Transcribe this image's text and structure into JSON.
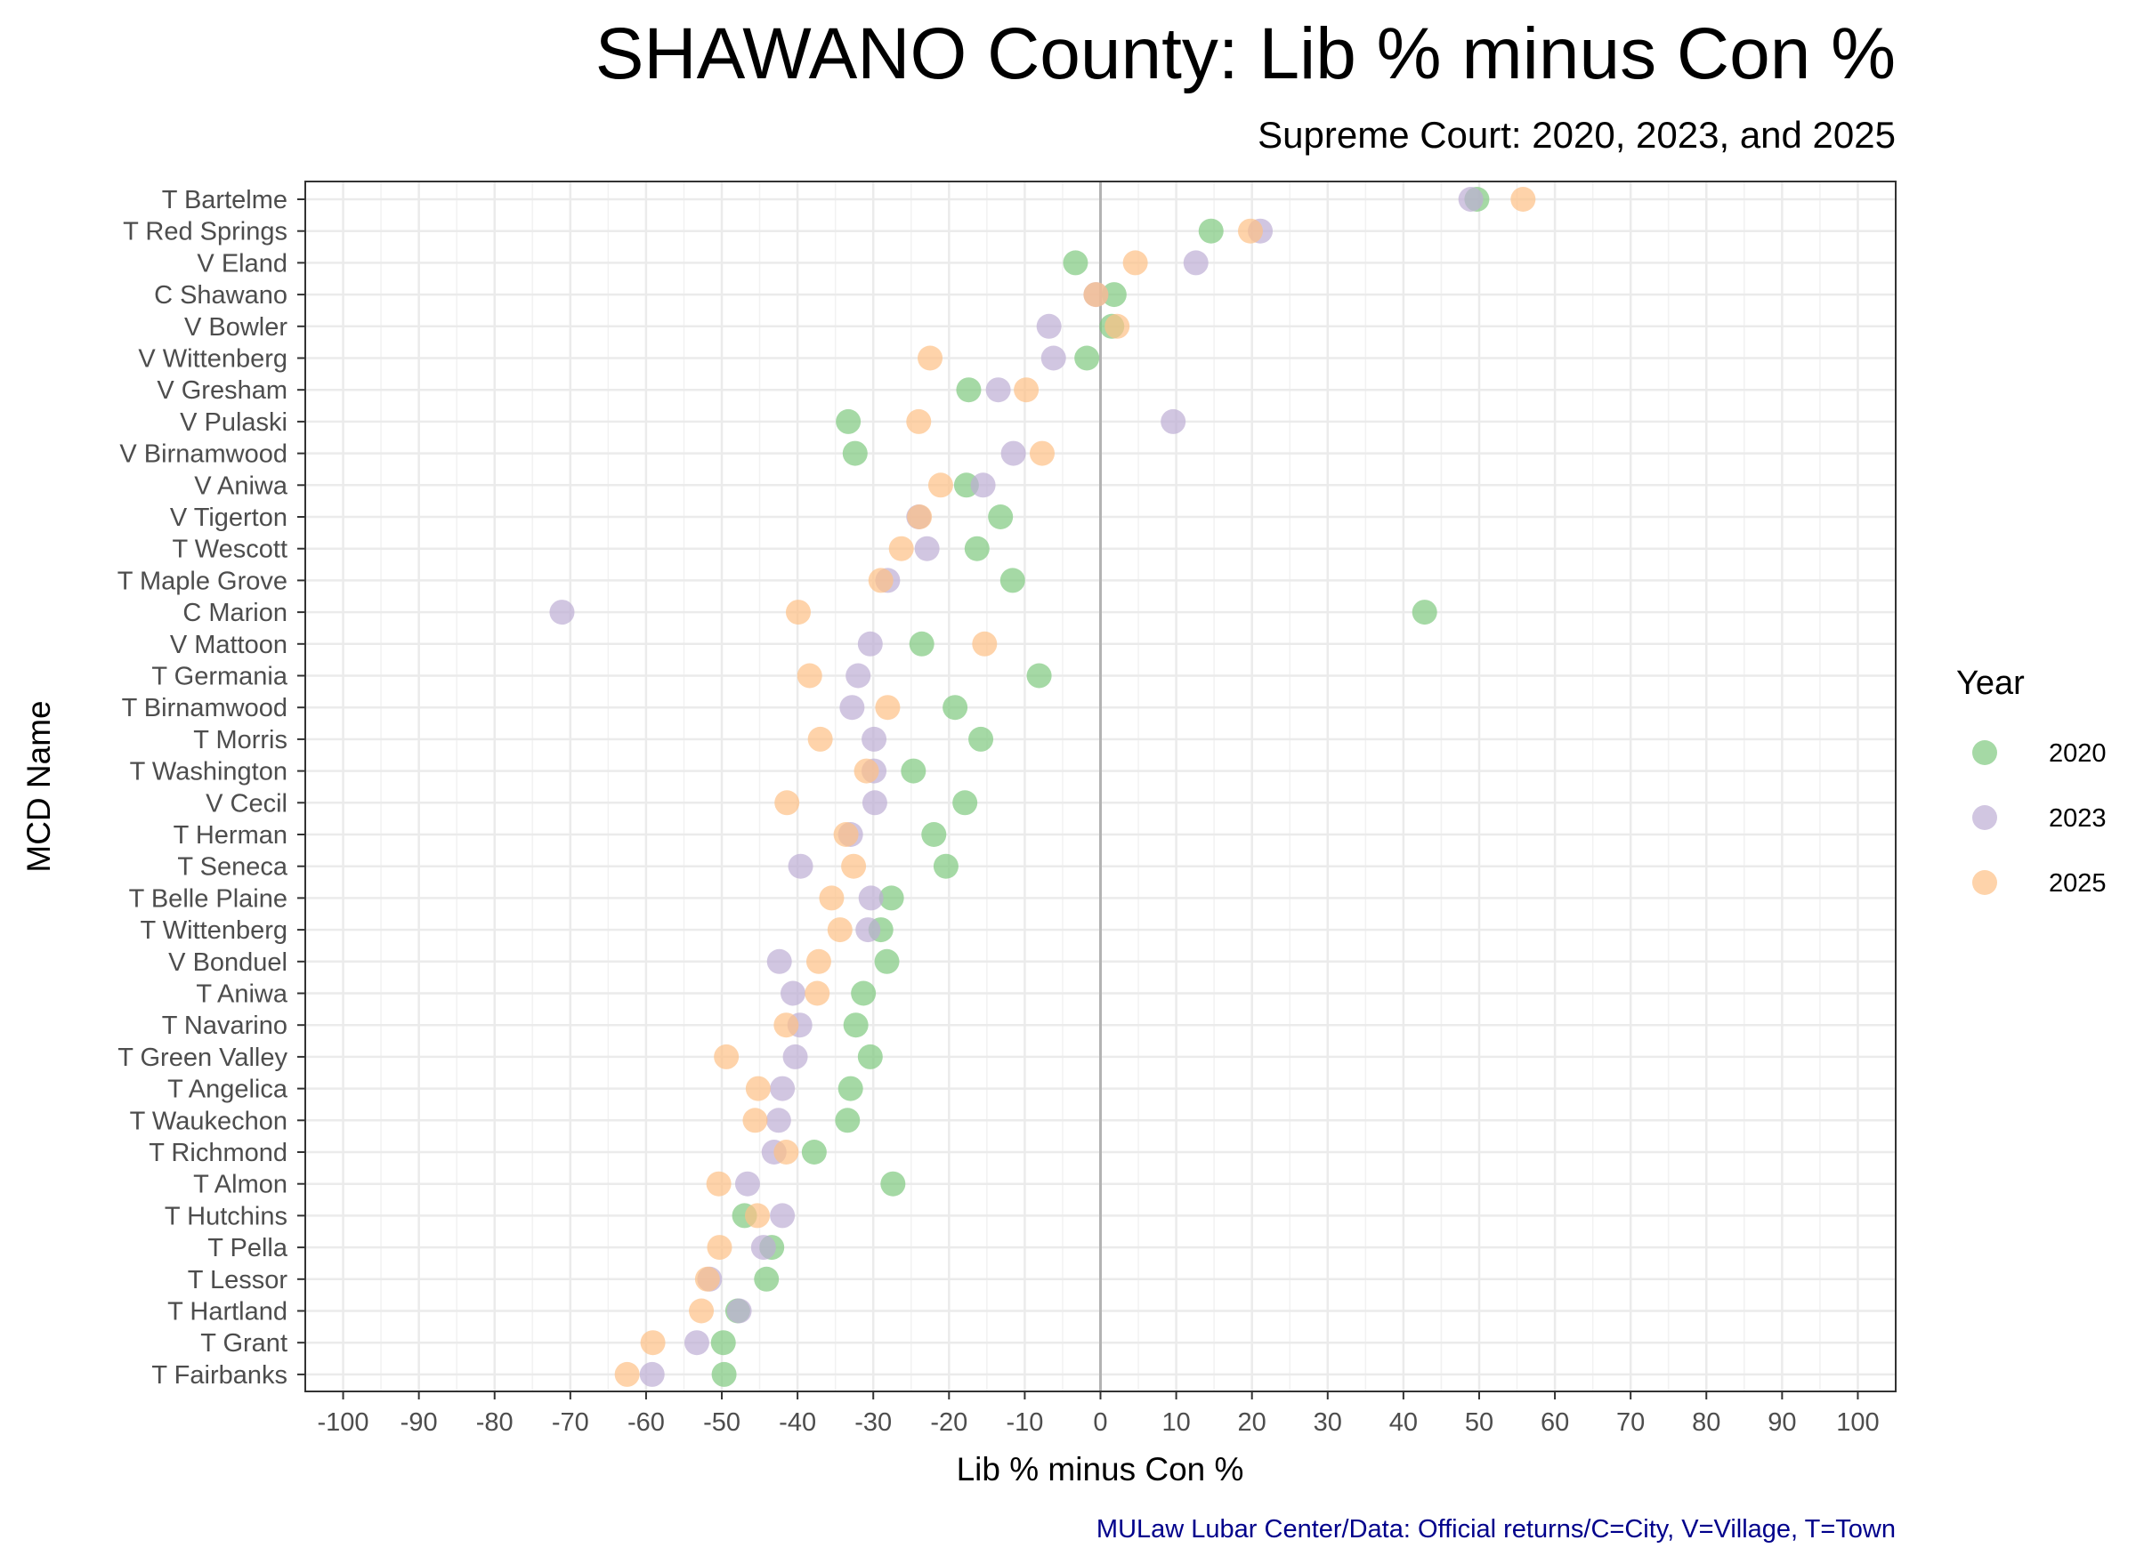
{
  "chart_data": {
    "type": "scatter",
    "title": "SHAWANO County: Lib % minus Con %",
    "subtitle": "Supreme Court: 2020, 2023, and 2025",
    "xlabel": "Lib % minus Con %",
    "ylabel": "MCD Name",
    "caption": "MULaw Lubar Center/Data: Official returns/C=City, V=Village, T=Town",
    "xlim": [
      -105,
      105
    ],
    "x_ticks": [
      -100,
      -90,
      -80,
      -70,
      -60,
      -50,
      -40,
      -30,
      -20,
      -10,
      0,
      10,
      20,
      30,
      40,
      50,
      60,
      70,
      80,
      90,
      100
    ],
    "x_tick_labels": [
      "-100",
      "-90",
      "-80",
      "-70",
      "-60",
      "-50",
      "-40",
      "-30",
      "-20",
      "-10",
      "0",
      "10",
      "20",
      "30",
      "40",
      "50",
      "60",
      "70",
      "80",
      "90",
      "100"
    ],
    "grid": true,
    "reference_line_x": 0,
    "legend": {
      "title": "Year",
      "position": "right"
    },
    "categories": [
      "T Bartelme",
      "T Red Springs",
      "V Eland",
      "C Shawano",
      "V Bowler",
      "V Wittenberg",
      "V Gresham",
      "V Pulaski",
      "V Birnamwood",
      "V Aniwa",
      "V Tigerton",
      "T Wescott",
      "T Maple Grove",
      "C Marion",
      "V Mattoon",
      "T Germania",
      "T Birnamwood",
      "T Morris",
      "T Washington",
      "V Cecil",
      "T Herman",
      "T Seneca",
      "T Belle Plaine",
      "T Wittenberg",
      "V Bonduel",
      "T Aniwa",
      "T Navarino",
      "T Green Valley",
      "T Angelica",
      "T Waukechon",
      "T Richmond",
      "T Almon",
      "T Hutchins",
      "T Pella",
      "T Lessor",
      "T Hartland",
      "T Grant",
      "T Fairbanks"
    ],
    "series": [
      {
        "name": "2020",
        "color": "#7fc97f",
        "values": [
          49.7,
          14.6,
          -3.3,
          1.8,
          1.5,
          -1.8,
          -17.4,
          -33.3,
          -32.4,
          -17.7,
          -13.2,
          -16.3,
          -11.6,
          42.8,
          -23.6,
          -8.1,
          -19.2,
          -15.8,
          -24.7,
          -17.9,
          -22.0,
          -20.4,
          -27.6,
          -29.0,
          -28.2,
          -31.3,
          -32.3,
          -30.4,
          -33.0,
          -33.4,
          -37.8,
          -27.4,
          -47.0,
          -43.4,
          -44.1,
          -47.9,
          -49.8,
          -49.7
        ]
      },
      {
        "name": "2023",
        "color": "#beaed4",
        "values": [
          48.9,
          21.1,
          12.6,
          -0.6,
          -6.8,
          -6.2,
          -13.5,
          9.6,
          -11.5,
          -15.5,
          -24.0,
          -22.9,
          -28.1,
          -71.1,
          -30.4,
          -32.0,
          -32.8,
          -29.9,
          -29.9,
          -29.8,
          -33.0,
          -39.6,
          -30.3,
          -30.7,
          -42.4,
          -40.6,
          -39.7,
          -40.3,
          -42.0,
          -42.5,
          -43.1,
          -46.6,
          -42.0,
          -44.5,
          -51.6,
          -47.7,
          -53.3,
          -59.2
        ]
      },
      {
        "name": "2025",
        "color": "#fdc086",
        "values": [
          55.8,
          19.8,
          4.6,
          -0.6,
          2.2,
          -22.5,
          -9.8,
          -24.0,
          -7.7,
          -21.1,
          -23.9,
          -26.3,
          -29.0,
          -39.9,
          -15.3,
          -38.4,
          -28.1,
          -37.0,
          -30.9,
          -41.4,
          -33.6,
          -32.6,
          -35.5,
          -34.4,
          -37.2,
          -37.4,
          -41.5,
          -49.4,
          -45.2,
          -45.6,
          -41.5,
          -50.4,
          -45.3,
          -50.3,
          -51.9,
          -52.7,
          -59.1,
          -62.5
        ]
      }
    ]
  }
}
